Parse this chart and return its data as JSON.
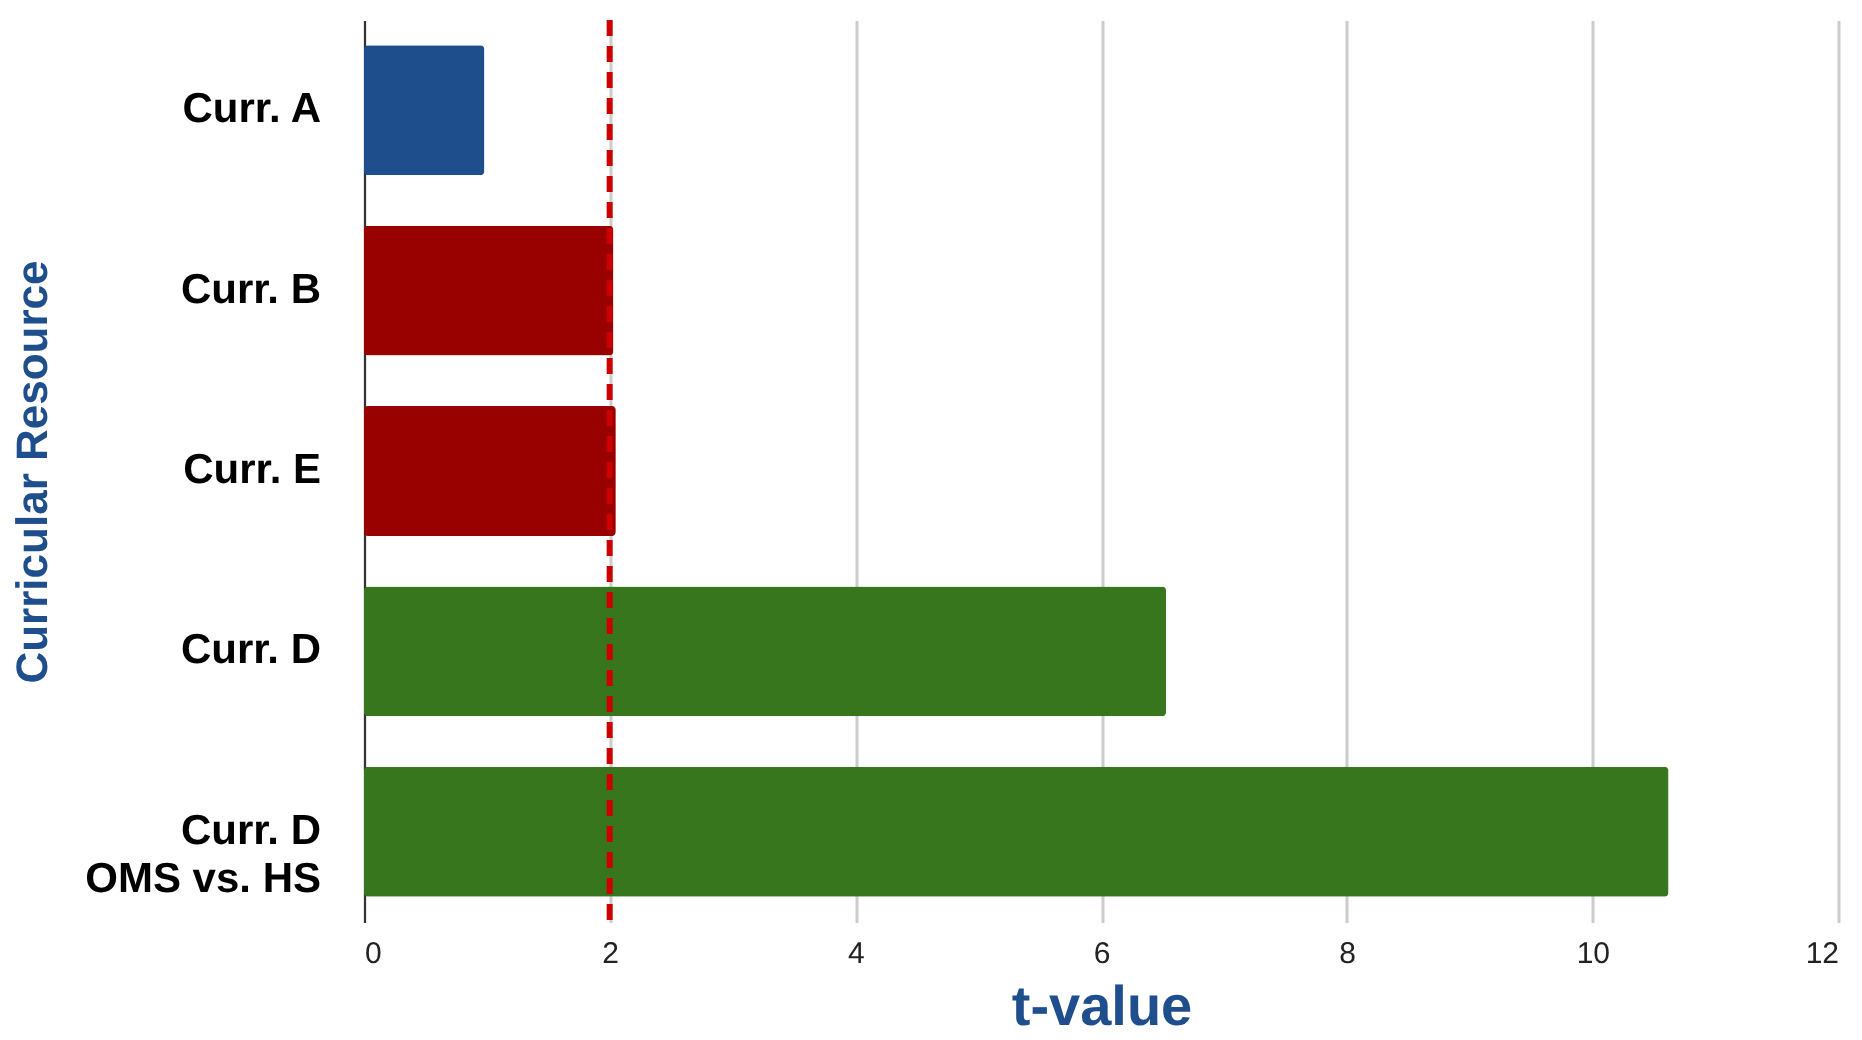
{
  "chart_data": {
    "type": "bar",
    "orientation": "horizontal",
    "categories": [
      "Curr. A",
      "Curr. B",
      "Curr. E",
      "Curr. D",
      "Curr. D\nOMS vs. HS"
    ],
    "values": [
      0.98,
      2.03,
      2.05,
      6.53,
      10.62
    ],
    "colors": [
      "#1f4e8c",
      "#990000",
      "#990000",
      "#38761d",
      "#38761d"
    ],
    "xlim": [
      0,
      12
    ],
    "xticks": [
      0,
      2,
      4,
      6,
      8,
      10,
      12
    ],
    "xlabel": "t-value",
    "ylabel": "Curricular Resource",
    "grid": "x",
    "ref_lines": [
      {
        "axis": "x",
        "value": 2,
        "color": "#cc0000",
        "line_style": "dashed"
      }
    ]
  }
}
